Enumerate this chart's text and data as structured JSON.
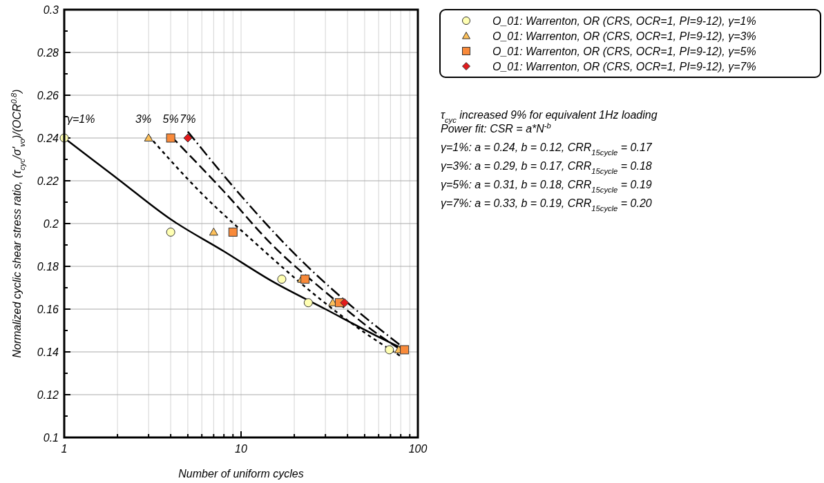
{
  "chart_data": {
    "type": "scatter",
    "xlabel": "Number of uniform cycles",
    "ylabel": "Normalized cyclic shear stress ratio, (τ$_{cyc}$/σ'$_{vo}$)/(OCR$^{0.8}$)",
    "log": "x",
    "grid": true,
    "legend": "top right",
    "xlim": [
      1,
      100
    ],
    "xticks": [
      1,
      {
        "value": 2,
        "label": null
      },
      {
        "value": 3,
        "label": null
      },
      {
        "value": 4,
        "label": null
      },
      {
        "value": 5,
        "label": null
      },
      {
        "value": 6,
        "label": null
      },
      {
        "value": 7,
        "label": null
      },
      {
        "value": 8,
        "label": null
      },
      {
        "value": 9,
        "label": null
      },
      10,
      {
        "value": 20,
        "label": null
      },
      {
        "value": 30,
        "label": null
      },
      {
        "value": 40,
        "label": null
      },
      {
        "value": 50,
        "label": null
      },
      {
        "value": 60,
        "label": null
      },
      {
        "value": 70,
        "label": null
      },
      {
        "value": 80,
        "label": null
      },
      {
        "value": 90,
        "label": null
      },
      100
    ],
    "ylim": [
      0.1,
      0.3
    ],
    "yticks": [
      0.1,
      0.12,
      0.14,
      0.16,
      0.18,
      0.2,
      0.22,
      0.24,
      0.26,
      0.28,
      0.3
    ],
    "series": [
      {
        "name": "O_01: Warrenton, OR (CRS, OCR=1, PI=9-12), γ=1%",
        "color": "#ffffb3",
        "marker": "circle",
        "x": [
          1,
          4,
          17,
          24,
          69
        ],
        "values": [
          0.24,
          0.196,
          0.174,
          0.163,
          0.141
        ]
      },
      {
        "name": "O_01: Warrenton, OR (CRS, OCR=1, PI=9-12), γ=3%",
        "color": "#fdc05a",
        "marker": "triangle",
        "x": [
          3,
          7,
          22,
          33,
          78
        ],
        "values": [
          0.24,
          0.196,
          0.174,
          0.163,
          0.141
        ]
      },
      {
        "name": "O_01: Warrenton, OR (CRS, OCR=1, PI=9-12), γ=5%",
        "color": "#f98a3a",
        "marker": "square",
        "x": [
          4,
          9,
          23,
          36,
          84
        ],
        "values": [
          0.24,
          0.196,
          0.174,
          0.163,
          0.141
        ]
      },
      {
        "name": "O_01: Warrenton, OR (CRS, OCR=1, PI=9-12), γ=7%",
        "color": "#e31a1c",
        "marker": "diamond",
        "x": [
          5,
          38.5
        ],
        "values": [
          0.24,
          0.163
        ]
      },
      {
        "type": "line",
        "color": "#000000",
        "line_style": "solid",
        "x": [
          1,
          2,
          4,
          8,
          15,
          30,
          60,
          80
        ],
        "values": [
          0.24,
          0.221,
          0.202,
          0.187,
          0.173,
          0.16,
          0.147,
          0.142
        ]
      },
      {
        "type": "line",
        "color": "#000000",
        "line_style": "dashed",
        "x": [
          3,
          6,
          12,
          25,
          50,
          80
        ],
        "values": [
          0.241,
          0.214,
          0.191,
          0.168,
          0.149,
          0.138
        ]
      },
      {
        "type": "line",
        "color": "#000000",
        "line_style": "dashed",
        "x": [
          4,
          8,
          15,
          30,
          60,
          80
        ],
        "values": [
          0.241,
          0.215,
          0.19,
          0.168,
          0.148,
          0.141
        ]
      },
      {
        "type": "line",
        "color": "#000000",
        "line_style": "dashed",
        "x": [
          5,
          10,
          20,
          40,
          80
        ],
        "values": [
          0.243,
          0.213,
          0.186,
          0.163,
          0.143
        ]
      }
    ],
    "annotations": [
      {
        "text": "γ=1%",
        "x": 1,
        "y": 0.24
      },
      {
        "text": "3%",
        "x": 3,
        "y": 0.24
      },
      {
        "text": "5%",
        "x": 4,
        "y": 0.24
      },
      {
        "text": "7%",
        "x": 5,
        "y": 0.24
      },
      "τ$_{cyc}$ increased 9% for equivalent 1Hz loading",
      "Power fit: CSR = a*N$^{-b}$",
      "γ=1%: a = 0.24, b = 0.12, CRR$_{15cycle}$ = 0.17",
      "γ=3%: a = 0.29, b = 0.17, CRR$_{15cycle}$ = 0.18",
      "γ=5%: a = 0.31, b = 0.18, CRR$_{15cycle}$ = 0.19",
      "γ=7%: a = 0.33, b = 0.19, CRR$_{15cycle}$ = 0.20"
    ]
  }
}
